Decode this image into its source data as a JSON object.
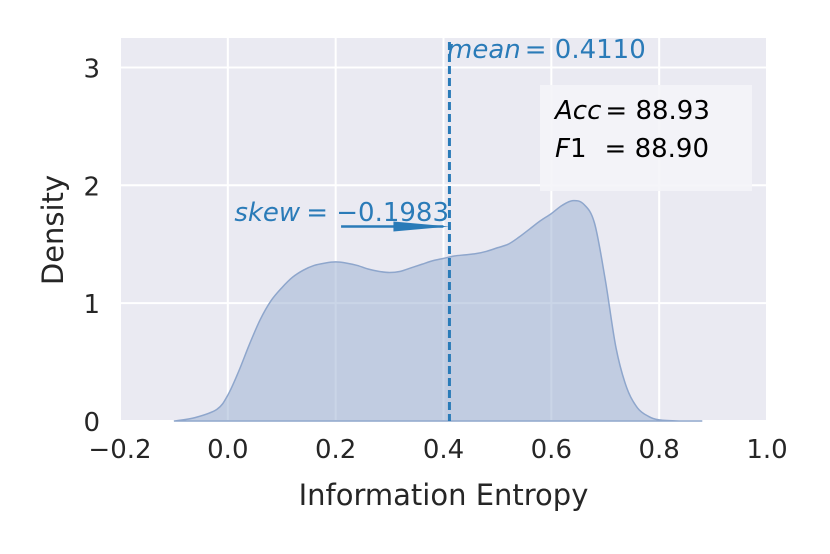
{
  "colors": {
    "plot_background": "#eaeaf2",
    "grid": "#ffffff",
    "density_fill": "#9fb2d4",
    "density_edge": "#8ea6cc",
    "annotation": "#2a7bb8",
    "text": "#262626"
  },
  "chart_data": {
    "type": "area",
    "xlabel": "Information Entropy",
    "ylabel": "Density",
    "xlim": [
      -0.2,
      1.0
    ],
    "ylim": [
      0,
      3.25
    ],
    "xticks": [
      "−0.2",
      "0.0",
      "0.2",
      "0.4",
      "0.6",
      "0.8",
      "1.0"
    ],
    "xtick_values": [
      -0.2,
      0.0,
      0.2,
      0.4,
      0.6,
      0.8,
      1.0
    ],
    "yticks": [
      "0",
      "1",
      "2",
      "3"
    ],
    "ytick_values": [
      0,
      1,
      2,
      3
    ],
    "grid": true,
    "series": [
      {
        "x": [
          -0.1,
          -0.06,
          -0.02,
          0.0,
          0.02,
          0.04,
          0.06,
          0.08,
          0.1,
          0.12,
          0.14,
          0.16,
          0.18,
          0.2,
          0.22,
          0.24,
          0.26,
          0.28,
          0.3,
          0.32,
          0.34,
          0.36,
          0.38,
          0.4,
          0.42,
          0.44,
          0.46,
          0.48,
          0.5,
          0.52,
          0.54,
          0.56,
          0.58,
          0.6,
          0.62,
          0.64,
          0.66,
          0.68,
          0.7,
          0.72,
          0.74,
          0.76,
          0.78,
          0.8,
          0.84,
          0.88
        ],
        "y": [
          0.0,
          0.03,
          0.1,
          0.22,
          0.42,
          0.65,
          0.86,
          1.02,
          1.13,
          1.22,
          1.28,
          1.32,
          1.34,
          1.35,
          1.34,
          1.32,
          1.29,
          1.27,
          1.26,
          1.27,
          1.3,
          1.33,
          1.36,
          1.38,
          1.4,
          1.41,
          1.42,
          1.44,
          1.47,
          1.5,
          1.56,
          1.63,
          1.7,
          1.76,
          1.83,
          1.87,
          1.84,
          1.68,
          1.2,
          0.62,
          0.28,
          0.11,
          0.04,
          0.01,
          0.0,
          0.0
        ]
      }
    ],
    "mean_line": {
      "x": 0.411
    },
    "skew_arrow": {
      "x_start": 0.21,
      "x_end": 0.411,
      "y": 1.65
    },
    "annotations": {
      "mean_var": "mean",
      "mean_val": "= 0.4110",
      "skew_var": "skew",
      "skew_val": "= −0.1983",
      "acc_var": "Acc",
      "acc_val": "= 88.93",
      "f1_var": "F",
      "f1_sub": "1",
      "f1_val": "= 88.90"
    }
  }
}
